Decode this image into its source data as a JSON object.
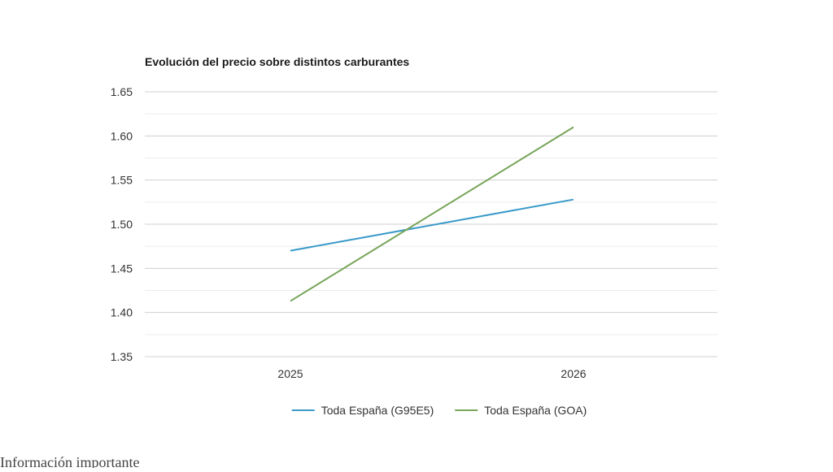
{
  "chart_data": {
    "type": "line",
    "title": "Evolución del precio sobre distintos carburantes",
    "xlabel": "",
    "ylabel": "",
    "categories": [
      "2025",
      "2026"
    ],
    "ylim": [
      1.35,
      1.65
    ],
    "yticks": [
      "1.35",
      "1.40",
      "1.45",
      "1.50",
      "1.55",
      "1.60",
      "1.65"
    ],
    "grid": true,
    "legend_position": "bottom",
    "series": [
      {
        "name": "Toda España (G95E5)",
        "values": [
          1.47,
          1.528
        ],
        "color": "#3a9ac9"
      },
      {
        "name": "Toda España (GOA)",
        "values": [
          1.413,
          1.61
        ],
        "color": "#78a55a"
      }
    ]
  },
  "footer_fragment": "Información importante"
}
